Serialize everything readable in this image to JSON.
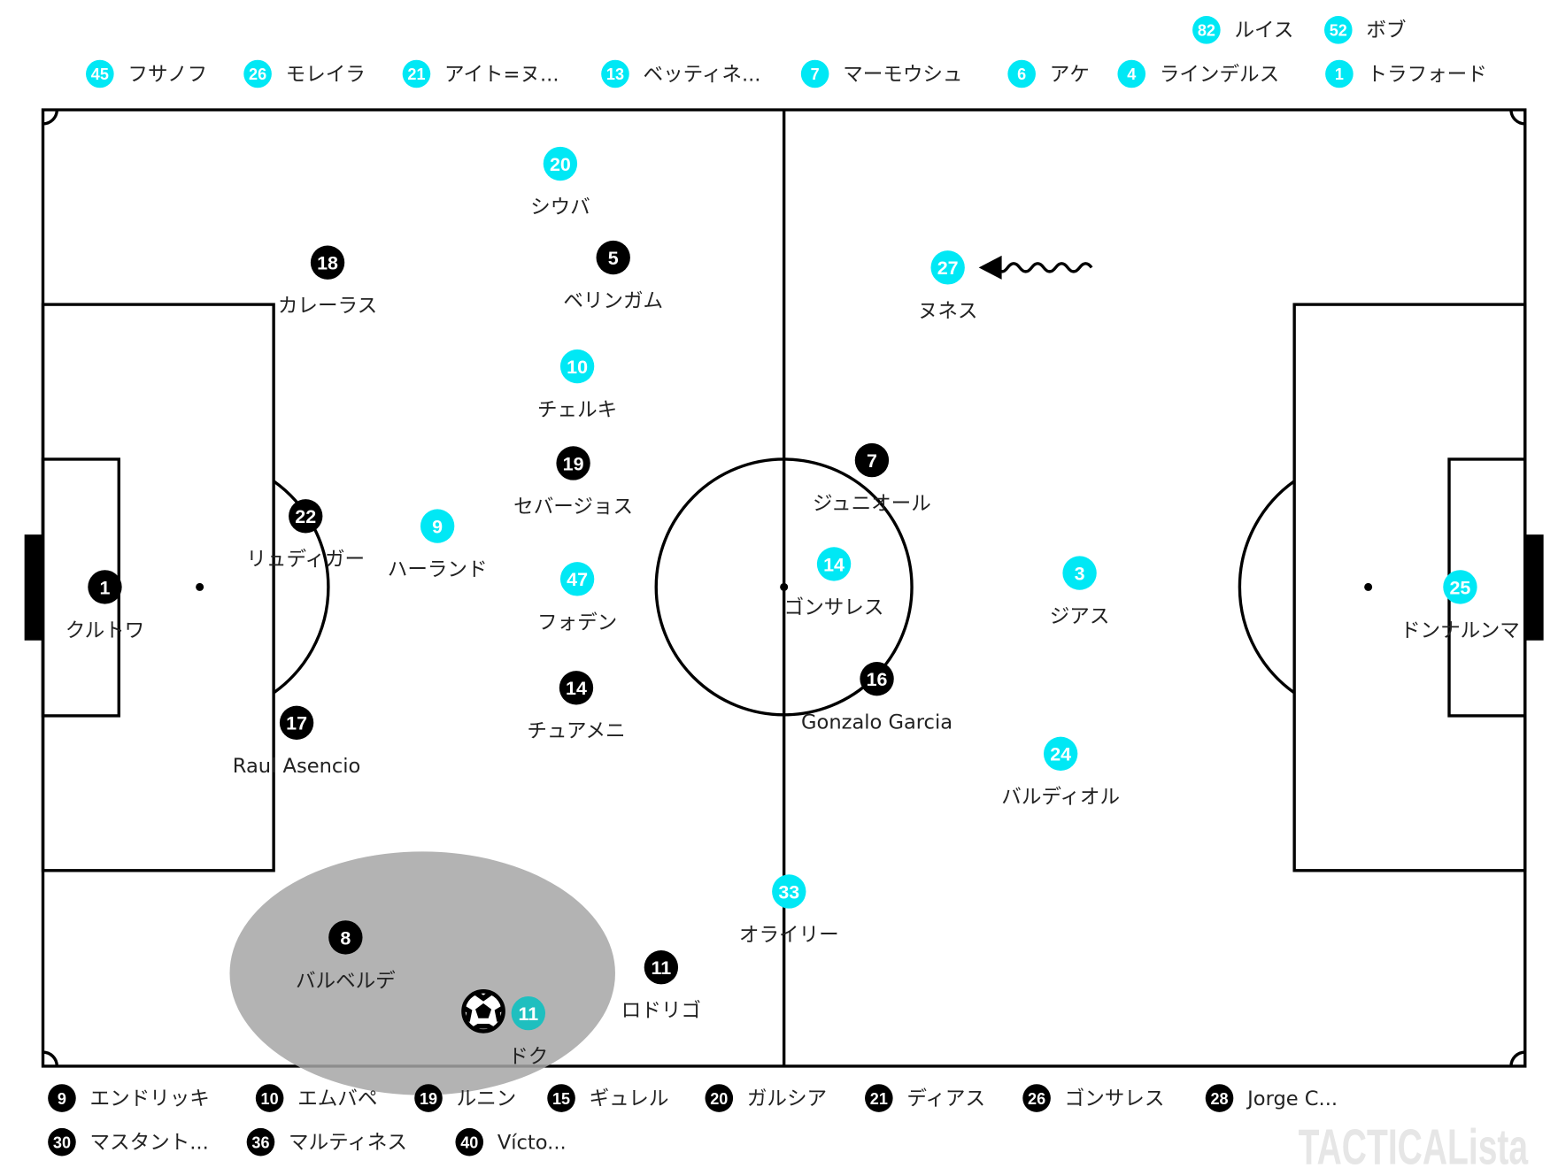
{
  "colors": {
    "home": "#000000",
    "away": "#00e8f5",
    "highlight": "#1fbfbf",
    "pitch_line": "#000000",
    "focus_area": "#a6a6a6"
  },
  "watermark": "TACTICALista",
  "away_subs": [
    {
      "number": "82",
      "name": "ルイス"
    },
    {
      "number": "52",
      "name": "ボブ"
    },
    {
      "number": "45",
      "name": "フサノフ"
    },
    {
      "number": "26",
      "name": "モレイラ"
    },
    {
      "number": "21",
      "name": "アイト=ヌ..."
    },
    {
      "number": "13",
      "name": "ベッティネ..."
    },
    {
      "number": "7",
      "name": "マーモウシュ"
    },
    {
      "number": "6",
      "name": "アケ"
    },
    {
      "number": "4",
      "name": "ラインデルス"
    },
    {
      "number": "1",
      "name": "トラフォード"
    }
  ],
  "home_subs": [
    {
      "number": "9",
      "name": "エンドリッキ"
    },
    {
      "number": "10",
      "name": "エムバペ"
    },
    {
      "number": "19",
      "name": "ルニン"
    },
    {
      "number": "15",
      "name": "ギュレル"
    },
    {
      "number": "20",
      "name": "ガルシア"
    },
    {
      "number": "21",
      "name": "ディアス"
    },
    {
      "number": "26",
      "name": "ゴンサレス"
    },
    {
      "number": "28",
      "name": "Jorge C..."
    },
    {
      "number": "30",
      "name": "マスタント..."
    },
    {
      "number": "36",
      "name": "マルティネス"
    },
    {
      "number": "40",
      "name": "Vícto..."
    }
  ],
  "home_players": [
    {
      "number": "18",
      "name": "カレーラス"
    },
    {
      "number": "5",
      "name": "ベリンガム"
    },
    {
      "number": "19",
      "name": "セバージョス"
    },
    {
      "number": "22",
      "name": "リュディガー"
    },
    {
      "number": "1",
      "name": "クルトワ"
    },
    {
      "number": "17",
      "name": "Raul Asencio"
    },
    {
      "number": "14",
      "name": "チュアメニ"
    },
    {
      "number": "8",
      "name": "バルベルデ"
    },
    {
      "number": "11",
      "name": "ロドリゴ"
    },
    {
      "number": "7",
      "name": "ジュニオール"
    },
    {
      "number": "16",
      "name": "Gonzalo Garcia"
    }
  ],
  "away_players": [
    {
      "number": "20",
      "name": "シウバ"
    },
    {
      "number": "10",
      "name": "チェルキ"
    },
    {
      "number": "9",
      "name": "ハーランド"
    },
    {
      "number": "47",
      "name": "フォデン"
    },
    {
      "number": "14",
      "name": "ゴンサレス"
    },
    {
      "number": "27",
      "name": "ヌネス"
    },
    {
      "number": "3",
      "name": "ジアス"
    },
    {
      "number": "24",
      "name": "バルディオル"
    },
    {
      "number": "33",
      "name": "オライリー"
    },
    {
      "number": "25",
      "name": "ドンナルンマ"
    },
    {
      "number": "11",
      "name": "ドク",
      "has_ball": true
    }
  ]
}
